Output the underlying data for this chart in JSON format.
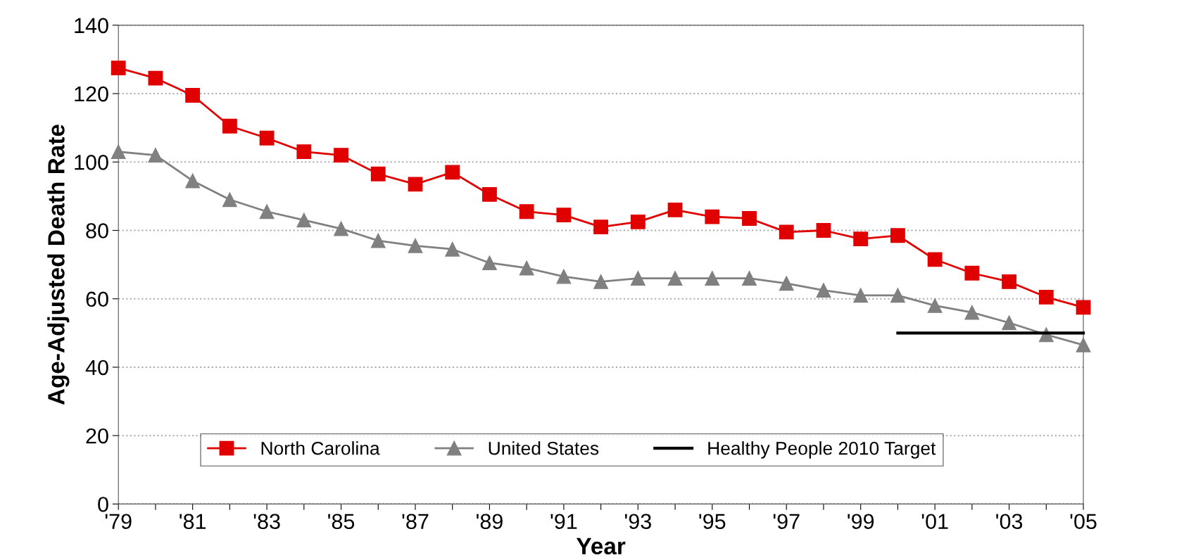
{
  "chart_data": {
    "type": "line",
    "xlabel": "Year",
    "ylabel": "Age-Adjusted Death Rate",
    "categories": [
      "'79",
      null,
      "'81",
      null,
      "'83",
      null,
      "'85",
      null,
      "'87",
      null,
      "'89",
      null,
      "'91",
      null,
      "'93",
      null,
      "'95",
      null,
      "'97",
      null,
      "'99",
      null,
      "'01",
      null,
      "'03",
      null,
      "'05"
    ],
    "series": [
      {
        "name": "North Carolina",
        "color": "#e00000",
        "marker": "square",
        "values": [
          127.5,
          124.5,
          119.5,
          110.5,
          107,
          103,
          102,
          96.5,
          93.5,
          97,
          90.5,
          85.5,
          84.5,
          81,
          82.5,
          86,
          84,
          83.5,
          79.5,
          80,
          77.5,
          78.5,
          71.5,
          67.5,
          65,
          60.5,
          57.5
        ]
      },
      {
        "name": "United States",
        "color": "#808080",
        "marker": "triangle",
        "values": [
          103,
          102,
          94.5,
          89,
          85.5,
          83,
          80.5,
          77,
          75.5,
          74.5,
          70.5,
          69,
          66.5,
          65,
          66,
          66,
          66,
          66,
          64.5,
          62.5,
          61,
          61,
          58,
          56,
          53,
          49.5,
          46.5
        ]
      },
      {
        "name": "Healthy People 2010 Target",
        "color": "#000000",
        "marker": "none",
        "values": [
          null,
          null,
          null,
          null,
          null,
          null,
          null,
          null,
          null,
          null,
          null,
          null,
          null,
          null,
          null,
          null,
          null,
          null,
          null,
          null,
          null,
          50,
          50,
          50,
          50,
          50,
          50
        ]
      }
    ],
    "ylim": [
      0,
      140
    ],
    "yticks": [
      0,
      20,
      40,
      60,
      80,
      100,
      120,
      140
    ],
    "grid": "y",
    "legend": "bottom",
    "line_style": "solid"
  }
}
